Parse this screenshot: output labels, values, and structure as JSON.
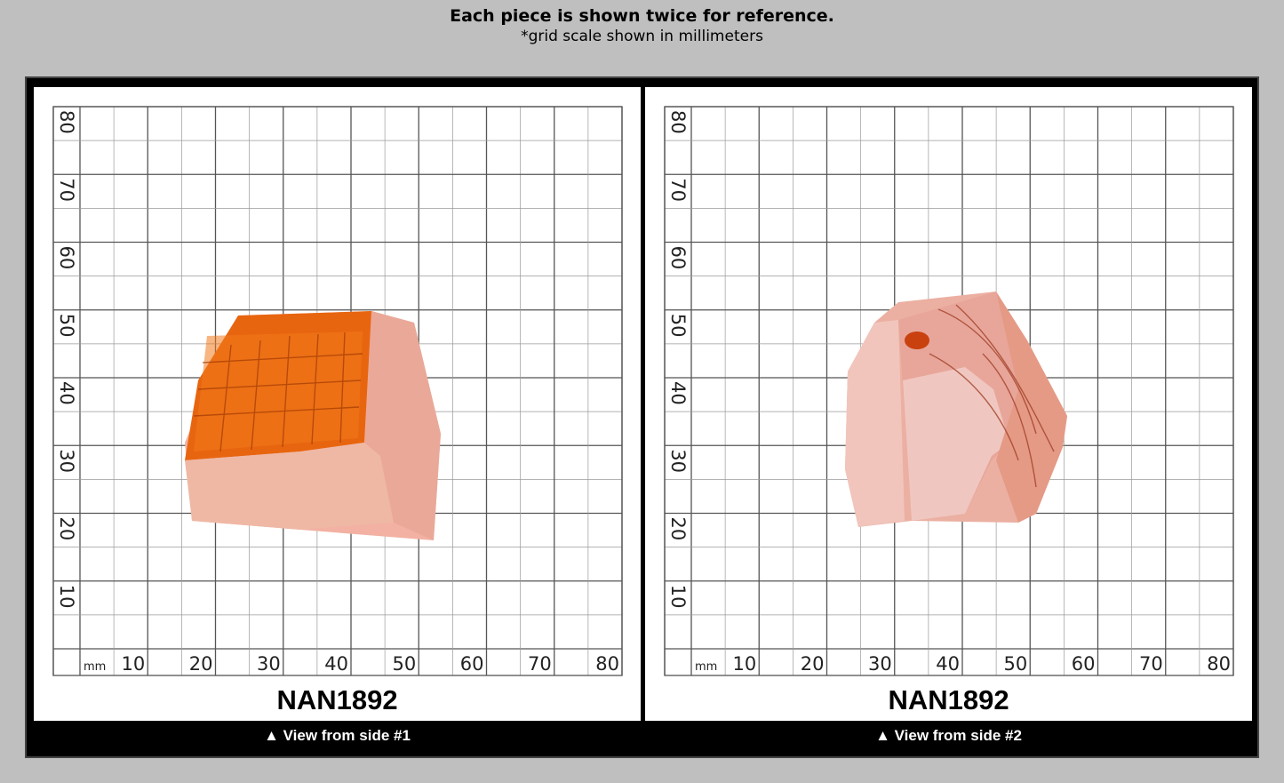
{
  "header": {
    "title": "Each piece is shown twice for reference.",
    "subtitle": "*grid scale shown in millimeters"
  },
  "panels": [
    {
      "label": "NAN1892",
      "caption": "▲ View from side #1"
    },
    {
      "label": "NAN1892",
      "caption": "▲ View from side #2"
    }
  ],
  "grid": {
    "unit": "mm",
    "x_ticks": [
      "10",
      "20",
      "30",
      "40",
      "50",
      "60",
      "70",
      "80"
    ],
    "y_ticks": [
      "10",
      "20",
      "30",
      "40",
      "50",
      "60",
      "70",
      "80"
    ]
  },
  "colors": {
    "background": "#bfbfbf",
    "frame": "#000000",
    "grid_major": "#555555",
    "grid_minor": "#9a9a9a",
    "stone_side1_face": "#e8650f",
    "stone_side2_body": "#e9a597"
  }
}
